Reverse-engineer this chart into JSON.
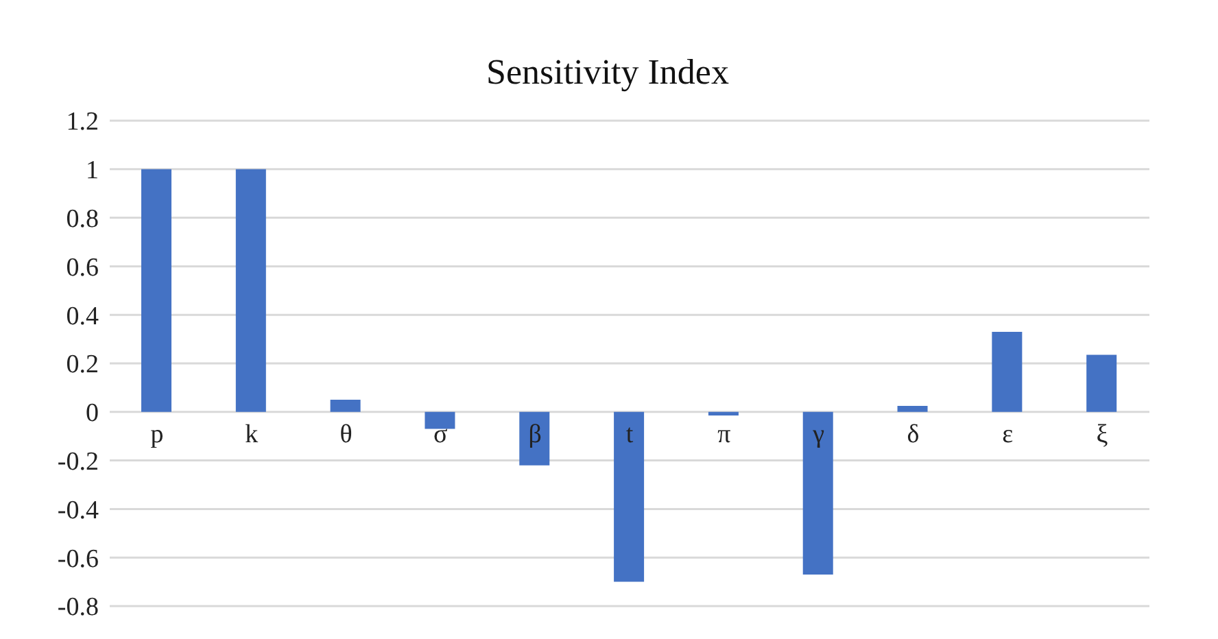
{
  "chart_data": {
    "type": "bar",
    "title": "Sensitivity Index",
    "categories": [
      "p",
      "k",
      "θ",
      "σ",
      "β",
      "t",
      "π",
      "γ",
      "δ",
      "ε",
      "ξ"
    ],
    "values": [
      1.0,
      1.0,
      0.05,
      -0.07,
      -0.22,
      -0.7,
      -0.015,
      -0.67,
      0.025,
      0.33,
      0.235
    ],
    "color": "#4472c4",
    "ylim": [
      -0.8,
      1.2
    ],
    "yticks": [
      -0.8,
      -0.6,
      -0.4,
      -0.2,
      0,
      0.2,
      0.4,
      0.6,
      0.8,
      1,
      1.2
    ],
    "grid": "y"
  }
}
